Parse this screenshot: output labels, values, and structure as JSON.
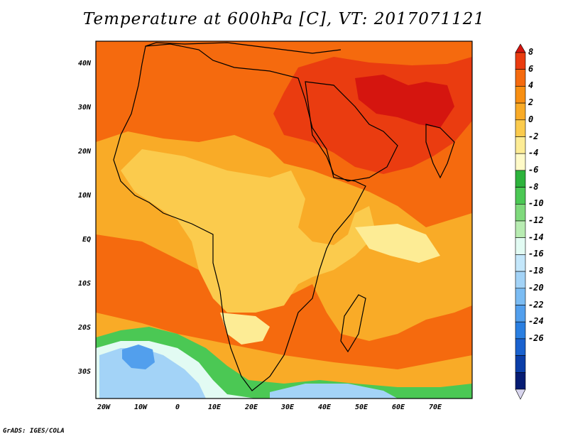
{
  "title": "Temperature at 600hPa [C], VT: 2017071121",
  "credit": "GrADS: IGES/COLA",
  "lat_labels": [
    "40N",
    "30N",
    "20N",
    "10N",
    "EQ",
    "10S",
    "20S",
    "30S"
  ],
  "lon_labels": [
    "20W",
    "10W",
    "0",
    "10E",
    "20E",
    "30E",
    "40E",
    "50E",
    "60E",
    "70E"
  ],
  "colorbar": {
    "labels": [
      "8",
      "6",
      "4",
      "2",
      "0",
      "-2",
      "-4",
      "-6",
      "-8",
      "-10",
      "-12",
      "-14",
      "-16",
      "-18",
      "-20",
      "-22",
      "-24",
      "-26"
    ],
    "colors": [
      "#d5150f",
      "#ea3c10",
      "#f56a0e",
      "#f88f12",
      "#f9ab27",
      "#fbcb4d",
      "#fdec95",
      "#fffac8",
      "#2db33c",
      "#4bc854",
      "#7fd97c",
      "#b8ecb2",
      "#e2fbf3",
      "#c4e7fb",
      "#a3d3f7",
      "#7bbcf3",
      "#529fed",
      "#2a7fe1",
      "#1a62cf",
      "#0b3ea8",
      "#061c73",
      "#d8d5ee"
    ]
  },
  "regions": [
    {
      "name": "default",
      "color": "#f9ab27"
    },
    {
      "name": "hot",
      "color": "#f56a0e"
    },
    {
      "name": "very-hot",
      "color": "#ea3c10"
    },
    {
      "name": "africa-land",
      "color": "#fbcb4d"
    },
    {
      "name": "cool",
      "color": "#fdec95"
    },
    {
      "name": "green",
      "color": "#4bc854"
    },
    {
      "name": "cold-sea",
      "color": "#e2fbf3"
    },
    {
      "name": "colder",
      "color": "#a3d3f7"
    },
    {
      "name": "coldest",
      "color": "#529fed"
    }
  ]
}
